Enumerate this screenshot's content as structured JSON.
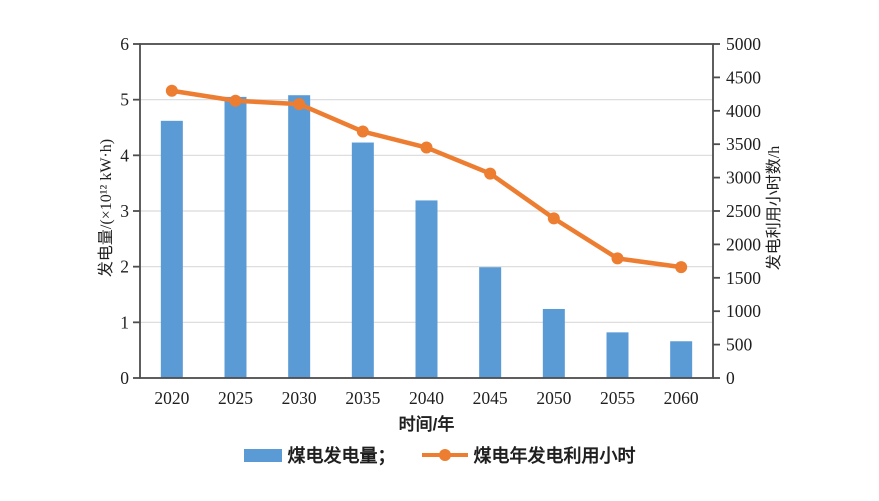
{
  "figure": {
    "background": "#ffffff"
  },
  "colors": {
    "bar": "#5B9BD5",
    "line": "#ED7D31",
    "grid": "#D9D9D9",
    "axis": "#4D4D4D",
    "tick_text": "#1F1F1F"
  },
  "chart_data": {
    "type": "bar",
    "subtype": "bar-and-line-dual-axis",
    "categories": [
      "2020",
      "2025",
      "2030",
      "2035",
      "2040",
      "2045",
      "2050",
      "2055",
      "2060"
    ],
    "series": [
      {
        "name": "煤电发电量",
        "type": "bar",
        "axis": "left",
        "color": "#5B9BD5",
        "values": [
          4.62,
          5.05,
          5.08,
          4.23,
          3.19,
          1.99,
          1.24,
          0.82,
          0.66
        ]
      },
      {
        "name": "煤电年发电利用小时",
        "type": "line",
        "axis": "right",
        "color": "#ED7D31",
        "marker": "circle",
        "values": [
          4300,
          4150,
          4100,
          3690,
          3450,
          3060,
          2390,
          1790,
          1660
        ]
      }
    ],
    "left_axis": {
      "label": "发电量/(×10¹² kW·h)",
      "min": 0,
      "max": 6,
      "step": 1,
      "ticks": [
        "0",
        "1",
        "2",
        "3",
        "4",
        "5",
        "6"
      ]
    },
    "right_axis": {
      "label": "发电利用小时数/h",
      "min": 0,
      "max": 5000,
      "step": 500,
      "ticks": [
        "0",
        "500",
        "1000",
        "1500",
        "2000",
        "2500",
        "3000",
        "3500",
        "4000",
        "4500",
        "5000"
      ]
    },
    "x_axis": {
      "label": "时间/年"
    },
    "grid": "horizontal-on",
    "legend": {
      "position": "bottom",
      "items": [
        {
          "label": "煤电发电量；",
          "swatch": "bar"
        },
        {
          "label": "煤电年发电利用小时",
          "swatch": "line"
        }
      ]
    }
  }
}
